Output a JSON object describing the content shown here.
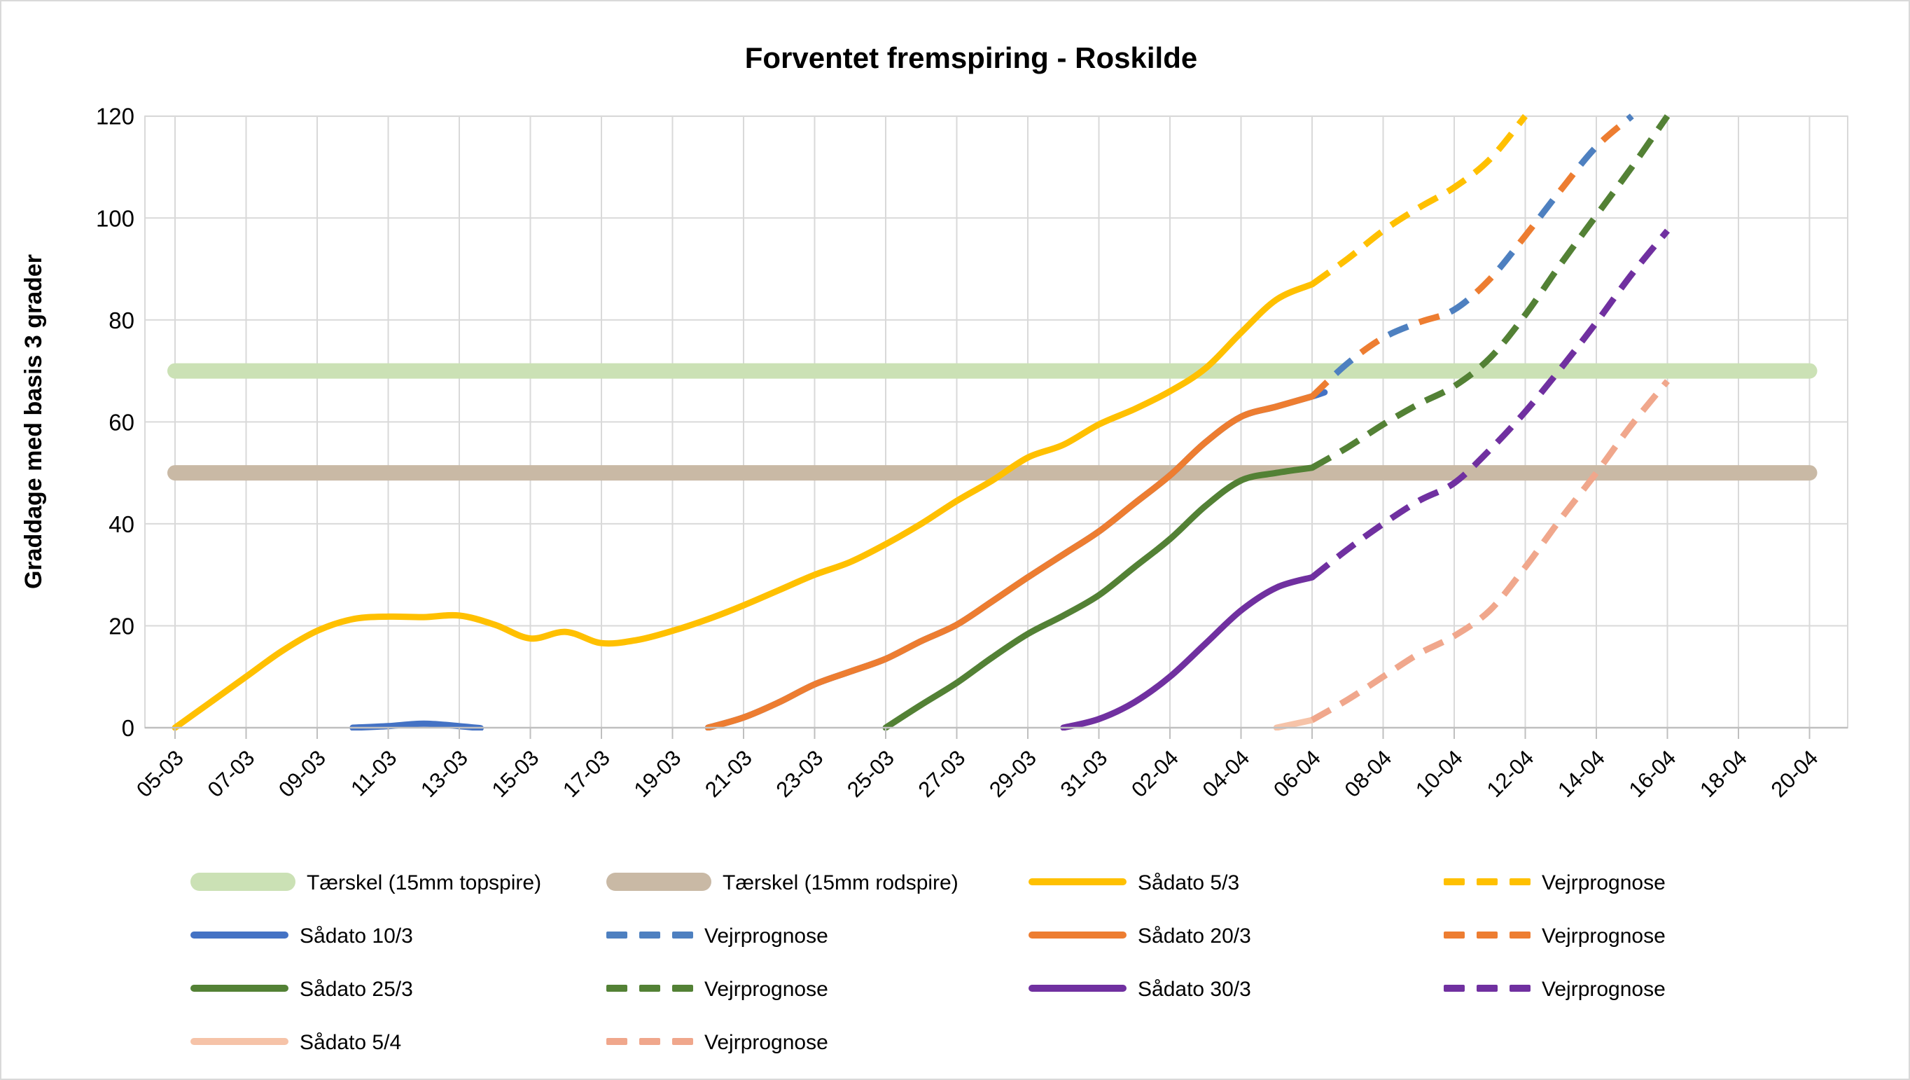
{
  "title": "Forventet fremspiring - Roskilde",
  "y_axis": {
    "title": "Graddage med basis 3 grader",
    "min": 0,
    "max": 120,
    "step": 20,
    "tick_labels": [
      "0",
      "20",
      "40",
      "60",
      "80",
      "100",
      "120"
    ]
  },
  "x_axis": {
    "day0_label": "05-03",
    "days_total": 46,
    "label_every_days": 2,
    "tick_labels": [
      "05-03",
      "07-03",
      "09-03",
      "11-03",
      "13-03",
      "15-03",
      "17-03",
      "19-03",
      "21-03",
      "23-03",
      "25-03",
      "27-03",
      "29-03",
      "31-03",
      "02-04",
      "04-04",
      "06-04",
      "08-04",
      "10-04",
      "12-04",
      "14-04",
      "16-04",
      "18-04",
      "20-04"
    ]
  },
  "colors": {
    "yellow": "#FFC000",
    "blue": "#4472C4",
    "blue_dash": "#4E80C0",
    "orange": "#ED7D31",
    "green": "#538135",
    "purple": "#7030A0",
    "pink": "#F6C3A8",
    "pink_dash": "#F0A78C",
    "band_green": "#CBE1B5",
    "band_tan": "#C9B9A5",
    "gridline": "#D9D9D9",
    "axis": "#BFBFBF",
    "text": "#000000"
  },
  "chart_data": {
    "type": "line",
    "title": "Forventet fremspiring - Roskilde",
    "xlabel": "",
    "ylabel": "Graddage med basis 3 grader",
    "ylim": [
      0,
      120
    ],
    "grid": true,
    "legend_position": "bottom",
    "x_unit": "days since 05-03 (label every 2 days, 05-03 .. 20-04)",
    "thresholds": [
      {
        "name": "Tærskel (15mm topspire)",
        "value": 70,
        "color": "#CBE1B5",
        "day_start": 0,
        "day_end": 46
      },
      {
        "name": "Tærskel (15mm rodspire)",
        "value": 50,
        "color": "#C9B9A5",
        "day_start": 0,
        "day_end": 46
      }
    ],
    "series": [
      {
        "key": "band-topspire",
        "name": "Tærskel (15mm topspire)",
        "style": "band",
        "color": "#CBE1B5",
        "value": 70,
        "points": [
          [
            0,
            70
          ],
          [
            46,
            70
          ]
        ]
      },
      {
        "key": "band-rodspire",
        "name": "Tærskel (15mm rodspire)",
        "style": "band",
        "color": "#C9B9A5",
        "value": 50,
        "points": [
          [
            0,
            50
          ],
          [
            46,
            50
          ]
        ]
      },
      {
        "key": "saadato-5-3",
        "name": "Sådato 5/3",
        "style": "solid",
        "color": "#FFC000",
        "points": [
          [
            0,
            0
          ],
          [
            1,
            5
          ],
          [
            2,
            10
          ],
          [
            3,
            15
          ],
          [
            4,
            19
          ],
          [
            5,
            21.3
          ],
          [
            6,
            21.8
          ],
          [
            7,
            21.7
          ],
          [
            8,
            22
          ],
          [
            9,
            20.2
          ],
          [
            10,
            17.5
          ],
          [
            11,
            18.8
          ],
          [
            12,
            16.6
          ],
          [
            13,
            17.2
          ],
          [
            14,
            19
          ],
          [
            15,
            21.3
          ],
          [
            16,
            24
          ],
          [
            17,
            27
          ],
          [
            18,
            30
          ],
          [
            19,
            32.5
          ],
          [
            20,
            36
          ],
          [
            21,
            40
          ],
          [
            22,
            44.5
          ],
          [
            23,
            48.5
          ],
          [
            24,
            53
          ],
          [
            25,
            55.5
          ],
          [
            26,
            59.5
          ],
          [
            27,
            62.5
          ],
          [
            28,
            66
          ],
          [
            29,
            70.5
          ],
          [
            30,
            77.5
          ],
          [
            31,
            84
          ],
          [
            32,
            87
          ]
        ]
      },
      {
        "key": "vejrprognose-5-3",
        "name": "Vejrprognose",
        "style": "dashed",
        "color": "#FFC000",
        "points": [
          [
            32,
            87
          ],
          [
            33,
            92
          ],
          [
            34,
            97.5
          ],
          [
            35,
            102
          ],
          [
            36,
            106
          ],
          [
            37,
            111.5
          ],
          [
            38,
            120
          ]
        ]
      },
      {
        "key": "saadato-10-3",
        "name": "Sådato 10/3",
        "style": "solid",
        "color": "#4472C4",
        "segments": [
          [
            [
              5,
              0
            ],
            [
              6,
              0.3
            ],
            [
              7,
              0.8
            ],
            [
              8,
              0.3
            ],
            [
              8.6,
              -0.1
            ]
          ],
          [
            [
              15,
              0
            ],
            [
              16,
              2
            ],
            [
              17,
              5
            ],
            [
              18,
              8.5
            ],
            [
              19,
              11
            ],
            [
              20,
              13.5
            ],
            [
              21,
              17
            ],
            [
              22,
              20.2
            ],
            [
              23,
              24.8
            ],
            [
              24,
              29.5
            ],
            [
              25,
              34
            ],
            [
              26,
              38.5
            ],
            [
              27,
              44
            ],
            [
              28,
              49.5
            ],
            [
              29,
              56
            ],
            [
              30,
              61
            ],
            [
              31,
              63
            ],
            [
              32,
              65
            ],
            [
              32.35,
              65.8
            ]
          ]
        ],
        "note": "from 20-03 identical to Sådato 20/3 (hidden beneath it)"
      },
      {
        "key": "saadato-20-3",
        "name": "Sådato 20/3",
        "style": "solid",
        "color": "#ED7D31",
        "points": [
          [
            15,
            0
          ],
          [
            16,
            2
          ],
          [
            17,
            5
          ],
          [
            18,
            8.5
          ],
          [
            19,
            11
          ],
          [
            20,
            13.5
          ],
          [
            21,
            17
          ],
          [
            22,
            20.2
          ],
          [
            23,
            24.8
          ],
          [
            24,
            29.5
          ],
          [
            25,
            34
          ],
          [
            26,
            38.5
          ],
          [
            27,
            44
          ],
          [
            28,
            49.5
          ],
          [
            29,
            56
          ],
          [
            30,
            61
          ],
          [
            31,
            63
          ],
          [
            32,
            65
          ]
        ]
      },
      {
        "key": "vejrprognose-20-3",
        "name": "Vejrprognose",
        "style": "dashed",
        "color": "#ED7D31",
        "pair_dash": "a",
        "points": [
          [
            32,
            65
          ],
          [
            33,
            71.5
          ],
          [
            34,
            76.5
          ],
          [
            35,
            79.5
          ],
          [
            36,
            82
          ],
          [
            37,
            88
          ],
          [
            38,
            96.5
          ],
          [
            39,
            105.5
          ],
          [
            40,
            114
          ],
          [
            41,
            120
          ]
        ]
      },
      {
        "key": "vejrprognose-10-3",
        "name": "Vejrprognose",
        "style": "dashed",
        "color": "#4E80C0",
        "pair_dash": "b",
        "points": [
          [
            32,
            65
          ],
          [
            33,
            71.5
          ],
          [
            34,
            76.5
          ],
          [
            35,
            79.5
          ],
          [
            36,
            82
          ],
          [
            37,
            88
          ],
          [
            38,
            96.5
          ],
          [
            39,
            105.5
          ],
          [
            40,
            114
          ],
          [
            41,
            120
          ]
        ],
        "note": "same path as Sådato 20/3 forecast — dashes alternate blue/orange"
      },
      {
        "key": "saadato-25-3",
        "name": "Sådato 25/3",
        "style": "solid",
        "color": "#538135",
        "points": [
          [
            20,
            0
          ],
          [
            21,
            4.5
          ],
          [
            22,
            8.8
          ],
          [
            23,
            13.8
          ],
          [
            24,
            18.4
          ],
          [
            25,
            22
          ],
          [
            26,
            26
          ],
          [
            27,
            31.5
          ],
          [
            28,
            37
          ],
          [
            29,
            43.5
          ],
          [
            30,
            48.5
          ],
          [
            31,
            50
          ],
          [
            32,
            51
          ]
        ]
      },
      {
        "key": "vejrprognose-25-3",
        "name": "Vejrprognose",
        "style": "dashed",
        "color": "#538135",
        "points": [
          [
            32,
            51
          ],
          [
            33,
            55
          ],
          [
            34,
            59.5
          ],
          [
            35,
            63.5
          ],
          [
            36,
            67
          ],
          [
            37,
            72.5
          ],
          [
            38,
            81
          ],
          [
            39,
            91
          ],
          [
            40,
            100.5
          ],
          [
            41,
            110
          ],
          [
            42,
            120
          ]
        ]
      },
      {
        "key": "saadato-30-3",
        "name": "Sådato 30/3",
        "style": "solid",
        "color": "#7030A0",
        "points": [
          [
            25,
            0
          ],
          [
            26,
            1.7
          ],
          [
            27,
            5
          ],
          [
            28,
            10
          ],
          [
            29,
            16.5
          ],
          [
            30,
            23
          ],
          [
            31,
            27.5
          ],
          [
            32,
            29.5
          ]
        ]
      },
      {
        "key": "vejrprognose-30-3",
        "name": "Vejrprognose",
        "style": "dashed",
        "color": "#7030A0",
        "points": [
          [
            32,
            29.5
          ],
          [
            33,
            35
          ],
          [
            34,
            40
          ],
          [
            35,
            44.5
          ],
          [
            36,
            48
          ],
          [
            37,
            54.5
          ],
          [
            38,
            62
          ],
          [
            39,
            70.5
          ],
          [
            40,
            79.5
          ],
          [
            41,
            89
          ],
          [
            42,
            97.5
          ]
        ]
      },
      {
        "key": "saadato-5-4",
        "name": "Sådato 5/4",
        "style": "solid",
        "color": "#F6C3A8",
        "points": [
          [
            31,
            0
          ],
          [
            32,
            1.5
          ]
        ]
      },
      {
        "key": "vejrprognose-5-4",
        "name": "Vejrprognose",
        "style": "dashed",
        "color": "#F0A78C",
        "points": [
          [
            32,
            1.5
          ],
          [
            33,
            5.5
          ],
          [
            34,
            10
          ],
          [
            35,
            14.5
          ],
          [
            36,
            18
          ],
          [
            37,
            23
          ],
          [
            38,
            31.5
          ],
          [
            39,
            41
          ],
          [
            40,
            50
          ],
          [
            41,
            59.5
          ],
          [
            42,
            68
          ]
        ]
      }
    ]
  },
  "legend": {
    "items": [
      {
        "label": "Tærskel (15mm topspire)",
        "style": "band",
        "color": "#CBE1B5"
      },
      {
        "label": "Tærskel (15mm rodspire)",
        "style": "band",
        "color": "#C9B9A5"
      },
      {
        "label": "Sådato 5/3",
        "style": "solid",
        "color": "#FFC000"
      },
      {
        "label": "Vejrprognose",
        "style": "dashed",
        "color": "#FFC000"
      },
      {
        "label": "Sådato 10/3",
        "style": "solid",
        "color": "#4472C4"
      },
      {
        "label": "Vejrprognose",
        "style": "dashed",
        "color": "#4E80C0"
      },
      {
        "label": "Sådato 20/3",
        "style": "solid",
        "color": "#ED7D31"
      },
      {
        "label": "Vejrprognose",
        "style": "dashed",
        "color": "#ED7D31"
      },
      {
        "label": "Sådato 25/3",
        "style": "solid",
        "color": "#538135"
      },
      {
        "label": "Vejrprognose",
        "style": "dashed",
        "color": "#538135"
      },
      {
        "label": "Sådato 30/3",
        "style": "solid",
        "color": "#7030A0"
      },
      {
        "label": "Vejrprognose",
        "style": "dashed",
        "color": "#7030A0"
      },
      {
        "label": "Sådato 5/4",
        "style": "solid",
        "color": "#F6C3A8"
      },
      {
        "label": "Vejrprognose",
        "style": "dashed",
        "color": "#F0A78C"
      }
    ]
  }
}
